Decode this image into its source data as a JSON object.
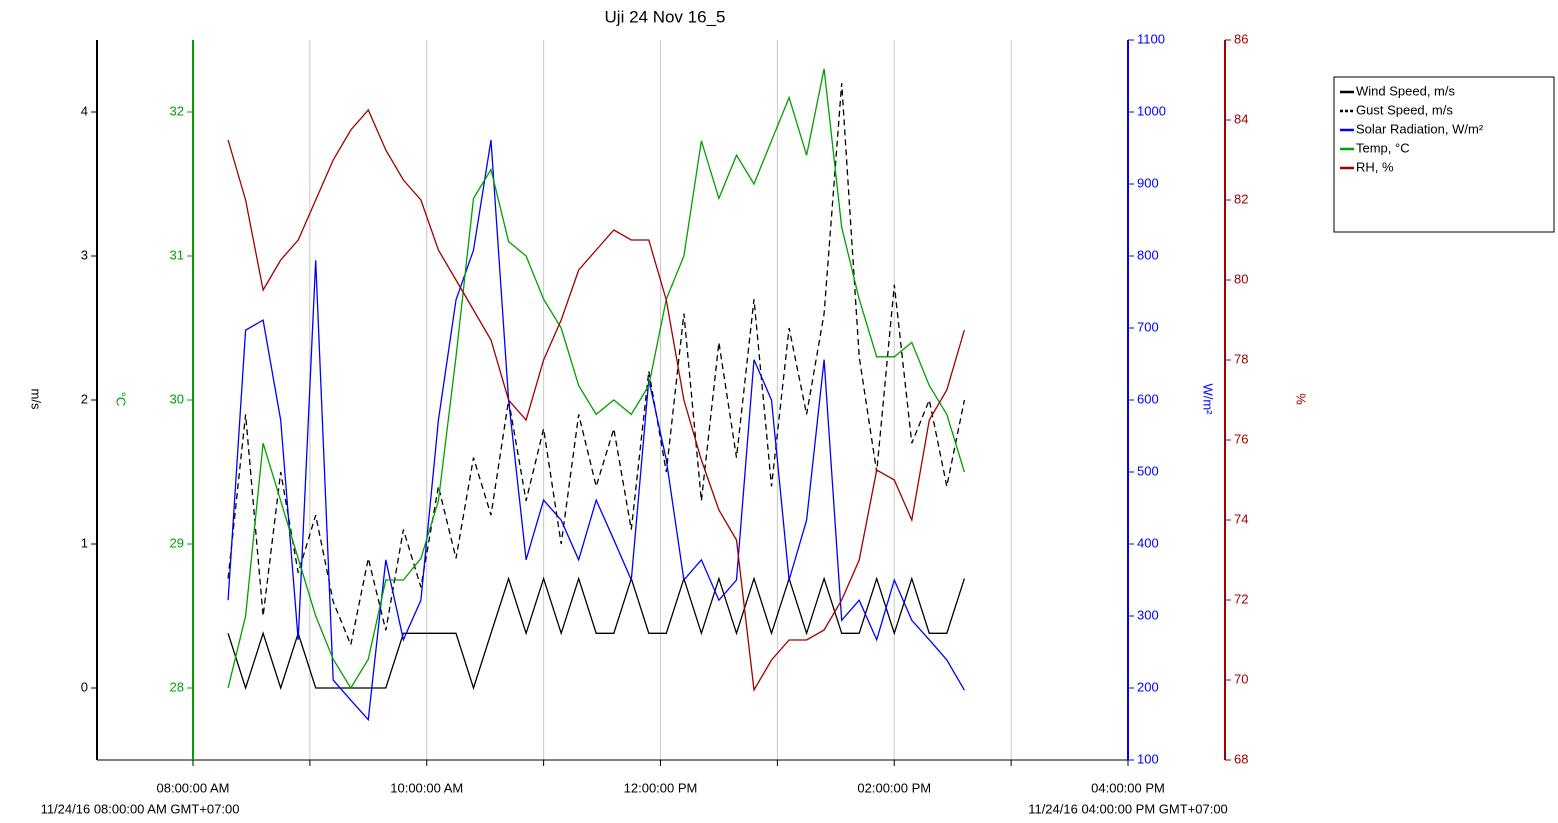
{
  "chart_data": {
    "type": "line",
    "title": "Uji 24 Nov 16_5",
    "x": [
      8.3,
      8.45,
      8.6,
      8.75,
      8.9,
      9.05,
      9.2,
      9.35,
      9.5,
      9.65,
      9.8,
      9.95,
      10.1,
      10.25,
      10.4,
      10.55,
      10.7,
      10.85,
      11,
      11.15,
      11.3,
      11.45,
      11.6,
      11.75,
      11.9,
      12.05,
      12.2,
      12.35,
      12.5,
      12.65,
      12.8,
      12.95,
      13.1,
      13.25,
      13.4,
      13.55,
      13.7,
      13.85,
      14,
      14.15,
      14.3,
      14.45,
      14.6
    ],
    "xlim": [
      8,
      16
    ],
    "xticks": [
      {
        "value": 8,
        "label": "08:00:00 AM"
      },
      {
        "value": 9,
        "label": null
      },
      {
        "value": 10,
        "label": "10:00:00 AM"
      },
      {
        "value": 11,
        "label": null
      },
      {
        "value": 12,
        "label": "12:00:00 PM"
      },
      {
        "value": 13,
        "label": null
      },
      {
        "value": 14,
        "label": "02:00:00 PM"
      },
      {
        "value": 15,
        "label": null
      },
      {
        "value": 16,
        "label": "04:00:00 PM"
      }
    ],
    "x_range_labels": [
      "11/24/16 08:00:00 AM GMT+07:00",
      "11/24/16 04:00:00 PM GMT+07:00"
    ],
    "grid": true,
    "ylabel": "m/s",
    "ylim": [
      -0.5,
      4.5
    ],
    "yticks": [
      0,
      1,
      2,
      3,
      4
    ],
    "y2label": "°C",
    "y2lim": [
      27.5,
      32.5
    ],
    "y2ticks": [
      28,
      29,
      30,
      31,
      32
    ],
    "y3label": "W/m²",
    "y3lim": [
      100,
      1100
    ],
    "y3ticks": [
      100,
      200,
      300,
      400,
      500,
      600,
      700,
      800,
      900,
      1000,
      1100
    ],
    "y4label": "%",
    "y4lim": [
      68,
      86
    ],
    "y4ticks": [
      68,
      70,
      72,
      74,
      76,
      78,
      80,
      82,
      84,
      86
    ],
    "legend": "top-right",
    "series": [
      {
        "name": "Wind Speed, m/s",
        "color": "#000000",
        "axis": "y",
        "dashed": false,
        "values": [
          0.38,
          0,
          0.38,
          0,
          0.38,
          0,
          0,
          0,
          0,
          0,
          0.38,
          0.38,
          0.38,
          0.38,
          0,
          0.38,
          0.76,
          0.38,
          0.76,
          0.38,
          0.76,
          0.38,
          0.38,
          0.76,
          0.38,
          0.38,
          0.76,
          0.38,
          0.76,
          0.38,
          0.76,
          0.38,
          0.76,
          0.38,
          0.76,
          0.38,
          0.38,
          0.76,
          0.38,
          0.76,
          0.38,
          0.38,
          0.76
        ]
      },
      {
        "name": "Gust Speed, m/s",
        "color": "#000000",
        "axis": "y",
        "dashed": true,
        "values": [
          0.76,
          1.9,
          0.5,
          1.5,
          0.8,
          1.2,
          0.6,
          0.3,
          0.9,
          0.4,
          1.1,
          0.7,
          1.4,
          0.9,
          1.6,
          1.2,
          2.0,
          1.3,
          1.8,
          1.0,
          1.9,
          1.4,
          1.8,
          1.1,
          2.2,
          1.5,
          2.6,
          1.3,
          2.4,
          1.6,
          2.7,
          1.4,
          2.5,
          1.9,
          2.6,
          4.2,
          2.3,
          1.5,
          2.8,
          1.7,
          2.0,
          1.4,
          2.0
        ]
      },
      {
        "name": "Solar Radiation, W/m²",
        "color": "#0000ff",
        "axis": "y3",
        "dashed": false,
        "values": [
          322,
          697,
          711,
          572,
          267,
          794,
          211,
          183,
          156,
          378,
          267,
          322,
          572,
          739,
          808,
          961,
          600,
          378,
          461,
          433,
          378,
          461,
          406,
          350,
          628,
          517,
          350,
          378,
          322,
          350,
          656,
          600,
          350,
          433,
          656,
          294,
          322,
          267,
          350,
          294,
          267,
          239,
          197
        ]
      },
      {
        "name": "Temp, °C",
        "color": "#00a000",
        "axis": "y2",
        "dashed": false,
        "values": [
          28.0,
          28.5,
          29.7,
          29.3,
          28.9,
          28.5,
          28.2,
          28.0,
          28.2,
          28.75,
          28.75,
          28.9,
          29.3,
          30.3,
          31.4,
          31.6,
          31.1,
          31.0,
          30.7,
          30.5,
          30.1,
          29.9,
          30.0,
          29.9,
          30.1,
          30.7,
          31.0,
          31.8,
          31.4,
          31.7,
          31.5,
          31.8,
          32.1,
          31.7,
          32.3,
          31.2,
          30.7,
          30.3,
          30.3,
          30.4,
          30.1,
          29.9,
          29.5
        ]
      },
      {
        "name": "RH, %",
        "color": "#a00000",
        "axis": "y4",
        "dashed": false,
        "values": [
          83.5,
          82.0,
          79.75,
          80.5,
          81.0,
          82.0,
          83.0,
          83.75,
          84.25,
          83.25,
          82.5,
          82.0,
          80.75,
          80.0,
          79.25,
          78.5,
          77.0,
          76.5,
          78.0,
          79.0,
          80.25,
          80.75,
          81.25,
          81.0,
          81.0,
          79.5,
          77.0,
          75.5,
          74.25,
          73.5,
          69.75,
          70.5,
          71.0,
          71.0,
          71.25,
          72.0,
          73.0,
          75.25,
          75.0,
          74.0,
          76.5,
          77.25,
          78.75
        ]
      }
    ]
  }
}
